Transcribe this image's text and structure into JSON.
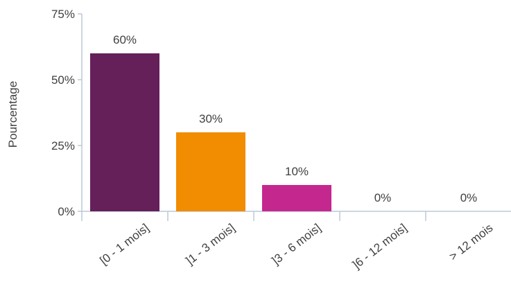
{
  "chart_data": {
    "type": "bar",
    "categories": [
      "[0 - 1 mois]",
      "]1 - 3 mois]",
      "]3 - 6 mois]",
      "]6 - 12 mois]",
      "> 12 mois"
    ],
    "values": [
      60,
      30,
      10,
      0,
      0
    ],
    "data_labels": [
      "60%",
      "30%",
      "10%",
      "0%",
      "0%"
    ],
    "colors": [
      "#65205a",
      "#f28c00",
      "#c4288f",
      "#c4288f",
      "#c4288f"
    ],
    "title": "",
    "xlabel": "",
    "ylabel": "Pourcentage",
    "ylim": [
      0,
      75
    ],
    "yticks": [
      0,
      25,
      50,
      75
    ],
    "ytick_labels": [
      "0%",
      "25%",
      "50%",
      "75%"
    ],
    "grid": false,
    "legend": "none"
  }
}
